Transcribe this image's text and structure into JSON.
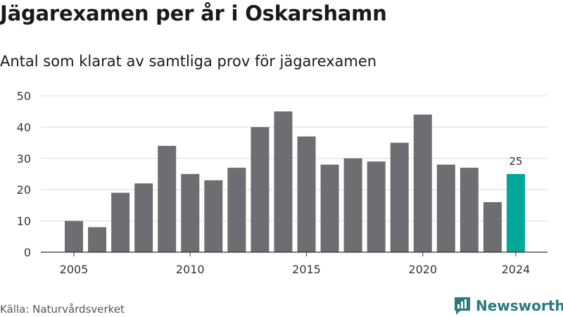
{
  "header": {
    "title": "Jägarexamen per år i Oskarshamn",
    "subtitle": "Antal som klarat av samtliga prov för jägarexamen"
  },
  "footer": {
    "source": "Källa: Naturvårdsverket",
    "brand_name": "Newsworthy",
    "brand_icon": "newsworthy-logo-icon",
    "brand_color": "#2b7a7e"
  },
  "chart_data": {
    "type": "bar",
    "title": "Jägarexamen per år i Oskarshamn",
    "subtitle": "Antal som klarat av samtliga prov för jägarexamen",
    "x": [
      2005,
      2006,
      2007,
      2008,
      2009,
      2010,
      2011,
      2012,
      2013,
      2014,
      2015,
      2016,
      2017,
      2018,
      2019,
      2020,
      2021,
      2022,
      2023,
      2024
    ],
    "values": [
      10,
      8,
      19,
      22,
      34,
      25,
      23,
      27,
      40,
      45,
      37,
      28,
      30,
      29,
      35,
      44,
      28,
      27,
      16,
      25
    ],
    "x_ticks": [
      "2005",
      "2010",
      "2015",
      "2020",
      "2024"
    ],
    "y_ticks": [
      0,
      10,
      20,
      30,
      40,
      50
    ],
    "ylim": [
      0,
      50
    ],
    "xlabel": "",
    "ylabel": "",
    "grid": true,
    "bar_color": "#6e6d72",
    "highlight_color": "#00a79a",
    "highlight_index": 19,
    "highlight_label": "25"
  }
}
